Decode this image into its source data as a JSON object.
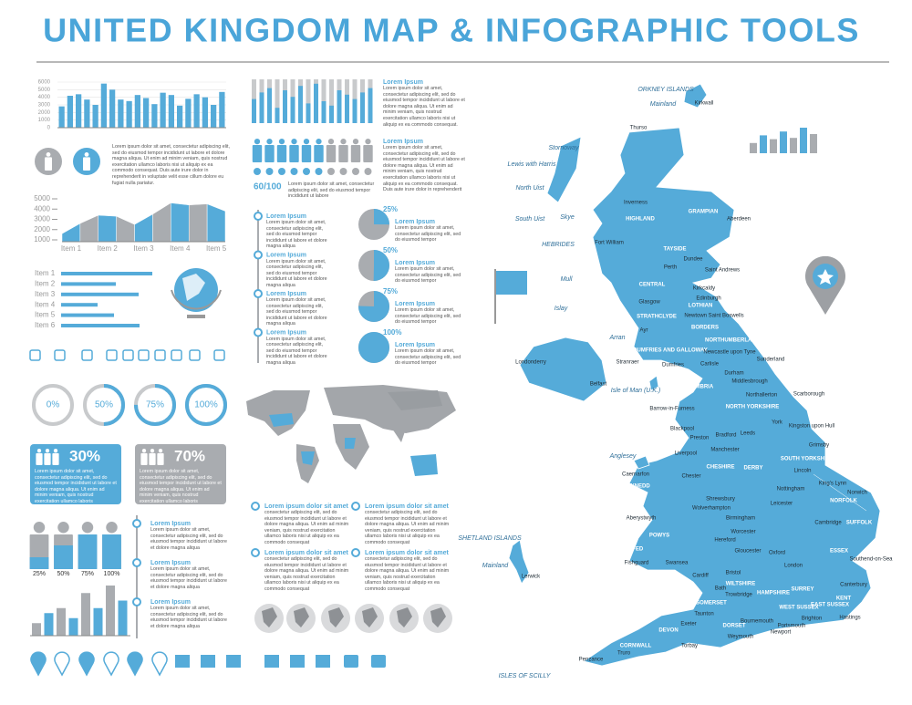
{
  "header": {
    "title": "UNITED KINGDOM MAP & INFOGRAPHIC TOOLS"
  },
  "column_chart": {
    "ylim": [
      0,
      6000
    ],
    "yticks": [
      0,
      1000,
      2000,
      3000,
      4000,
      5000,
      6000
    ],
    "values": [
      2800,
      4200,
      4400,
      3700,
      3000,
      5800,
      5000,
      3700,
      3500,
      4300,
      3900,
      3100,
      4600,
      4300,
      2900,
      3800,
      4400,
      4000,
      3000,
      4700
    ]
  },
  "people_note": {
    "text": "Lorem ipsum dolor sit amet, consectetur adipiscing elit, sed do eiusmod tempor incididunt ut labore et dolore magna aliqua. Ut enim ad minim veniam, quis nostrud exercitation ullamco laboris nisi ut aliquip ex ea commodo consequat. Duis aute irure dolor in reprehenderit in voluptate velit esse cillum dolore eu fugiat nulla pariatur."
  },
  "area_chart": {
    "ylim": [
      1000,
      5000
    ],
    "yticks": [
      1000,
      2000,
      3000,
      4000,
      5000
    ],
    "categories": [
      "Item 1",
      "Item 2",
      "Item 3",
      "Item 4",
      "Item 5"
    ],
    "values": [
      1600,
      2600,
      3400,
      3300,
      2500,
      3500,
      4600,
      4400,
      4500,
      3800
    ]
  },
  "item_bars": {
    "categories": [
      "Item 1",
      "Item 2",
      "Item 3",
      "Item 4",
      "Item 5",
      "Item 6"
    ],
    "values": [
      100,
      60,
      85,
      40,
      58,
      86
    ]
  },
  "gauges": {
    "values": [
      0,
      50,
      75,
      100
    ],
    "value_labels": [
      "0%",
      "50%",
      "75%",
      "100%"
    ]
  },
  "share_panels": [
    {
      "label": "30%",
      "text": "Lorem ipsum dolor sit amet, consectetur adipiscing elit, sed do eiusmod tempor incididunt ut labore et dolore magna aliqua. Ut enim ad minim veniam, quis nostrud exercitation ullamco laboris"
    },
    {
      "label": "70%",
      "text": "Lorem ipsum dolor sit amet, consectetur adipiscing elit, sed do eiusmod tempor incididunt ut labore et dolore magna aliqua. Ut enim ad minim veniam, quis nostrud exercitation ullamco laboris"
    }
  ],
  "person_levels": {
    "values": [
      25,
      50,
      75,
      100
    ],
    "value_labels": [
      "25%",
      "50%",
      "75%",
      "100%"
    ]
  },
  "small_bars": {
    "values": [
      25,
      45,
      55,
      35,
      85,
      55,
      100,
      70
    ]
  },
  "left_timeline": [
    {
      "title": "Lorem Ipsum",
      "text": "Lorem ipsum dolor sit amet, consectetur adipiscing elit, sed do eiusmod tempor incididunt ut labore et dolore magna aliqua"
    },
    {
      "title": "Lorem Ipsum",
      "text": "Lorem ipsum dolor sit amet, consectetur adipiscing elit, sed do eiusmod tempor incididunt ut labore et dolore magna aliqua"
    },
    {
      "title": "Lorem Ipsum",
      "text": "Lorem ipsum dolor sit amet, consectetur adipiscing elit, sed do eiusmod tempor incididunt ut labore et dolore magna aliqua"
    }
  ],
  "thin_bars": {
    "values": [
      55,
      70,
      80,
      35,
      75,
      60,
      85,
      45,
      90,
      50,
      40,
      75,
      65,
      55,
      70,
      80
    ]
  },
  "top_note": {
    "title": "Lorem Ipsum",
    "text": "Lorem ipsum dolor sit amet, consectetur adipiscing elit, sed do eiusmod tempor incididunt ut labore et dolore magna aliqua. Ut enim ad minim veniam, quis nostrud exercitation ullamco laboris nisi ut aliquip ex ea commodo consequat."
  },
  "people_row": {
    "score": 60,
    "score_label": "60/100",
    "score_text": "Lorem ipsum dolor sit amet, consectetur adipiscing elit, sed do eiusmod tempor incididunt ut labore",
    "title": "Lorem Ipsum",
    "text": "Lorem ipsum dolor sit amet, consectetur adipiscing elit, sed do eiusmod tempor incididunt ut labore et dolore magna aliqua. Ut enim ad minim veniam, quis nostrud exercitation ullamco laboris nisi ut aliquip ex ea commodo consequat. Duis aute irure dolor in reprehenderit"
  },
  "mid_timeline": [
    {
      "title": "Lorem Ipsum",
      "text": "Lorem ipsum dolor sit amet, consectetur adipiscing elit, sed do eiusmod tempor incididunt ut labore et dolore magna aliqua"
    },
    {
      "title": "Lorem Ipsum",
      "text": "Lorem ipsum dolor sit amet, consectetur adipiscing elit, sed do eiusmod tempor incididunt ut labore et dolore magna aliqua"
    },
    {
      "title": "Lorem Ipsum",
      "text": "Lorem ipsum dolor sit amet, consectetur adipiscing elit, sed do eiusmod tempor incididunt ut labore et dolore magna aliqua"
    },
    {
      "title": "Lorem Ipsum",
      "text": "Lorem ipsum dolor sit amet, consectetur adipiscing elit, sed do eiusmod tempor incididunt ut labore et dolore magna aliqua"
    }
  ],
  "pies": {
    "values": [
      25,
      50,
      75,
      100
    ],
    "value_labels": [
      "25%",
      "50%",
      "75%",
      "100%"
    ],
    "items": [
      {
        "title": "Lorem Ipsum",
        "text": "Lorem ipsum dolor sit amet, consectetur adipiscing elit, sed do eiusmod tempor"
      },
      {
        "title": "Lorem Ipsum",
        "text": "Lorem ipsum dolor sit amet, consectetur adipiscing elit, sed do eiusmod tempor"
      },
      {
        "title": "Lorem Ipsum",
        "text": "Lorem ipsum dolor sit amet, consectetur adipiscing elit, sed do eiusmod tempor"
      },
      {
        "title": "Lorem Ipsum",
        "text": "Lorem ipsum dolor sit amet, consectetur adipiscing elit, sed do eiusmod tempor"
      }
    ]
  },
  "world_notes": [
    {
      "title": "Lorem ipsum dolor sit amet",
      "text": "consectetur adipiscing elit, sed do eiusmod tempor incididunt ut labore et dolore magna aliqua. Ut enim ad minim veniam, quis nostrud exercitation ullamco laboris nisi ut aliquip ex ea commodo consequat"
    },
    {
      "title": "Lorem ipsum dolor sit amet",
      "text": "consectetur adipiscing elit, sed do eiusmod tempor incididunt ut labore et dolore magna aliqua. Ut enim ad minim veniam, quis nostrud exercitation ullamco laboris nisi ut aliquip ex ea commodo consequat"
    },
    {
      "title": "Lorem ipsum dolor sit amet",
      "text": "consectetur adipiscing elit, sed do eiusmod tempor incididunt ut labore et dolore magna aliqua. Ut enim ad minim veniam, quis nostrud exercitation ullamco laboris nisi ut aliquip ex ea commodo consequat"
    },
    {
      "title": "Lorem ipsum dolor sit amet",
      "text": "consectetur adipiscing elit, sed do eiusmod tempor incididunt ut labore et dolore magna aliqua. Ut enim ad minim veniam, quis nostrud exercitation ullamco laboris nisi ut aliquip ex ea commodo consequat"
    }
  ],
  "mini_chart": {
    "values": [
      40,
      70,
      55,
      85,
      60,
      100,
      75
    ]
  },
  "map": {
    "labels": [
      "ORKNEY ISLANDS",
      "Mainland",
      "Kirkwall",
      "Thurso",
      "Stornoway",
      "Lewis with Harris",
      "North Uist",
      "South Uist",
      "Skye",
      "HEBRIDES",
      "Inverness",
      "HIGHLAND",
      "GRAMPIAN",
      "Aberdeen",
      "Fort William",
      "TAYSIDE",
      "Perth",
      "Dundee",
      "Saint Andrews",
      "Mull",
      "CENTRAL",
      "Kirkcaldy",
      "Edinburgh",
      "Islay",
      "LOTHIAN",
      "Glasgow",
      "Newtown Saint Boswells",
      "STRATHCLYDE",
      "BORDERS",
      "Ayr",
      "Arran",
      "NORTHUMBERLAND",
      "DUMFRIES AND GALLOWAY",
      "Newcastle upon Tyne",
      "Sunderland",
      "Londonderry",
      "Stranraer",
      "Dumfries",
      "Carlisle",
      "Durham",
      "Belfast",
      "Middlesbrough",
      "Isle of Man (U.K.)",
      "CUMBRIA",
      "Northallerton",
      "Scarborough",
      "NORTH YORKSHIRE",
      "Barrow-in-Furness",
      "York",
      "Kingston upon Hull",
      "Blackpool",
      "Preston",
      "Bradford",
      "Leeds",
      "Grimsby",
      "Anglesey",
      "Liverpool",
      "Manchester",
      "SOUTH YORKSHIRE",
      "Caernarfon",
      "Chester",
      "CHESHIRE",
      "DERBY",
      "Lincoln",
      "GWYNEDD",
      "King's Lynn",
      "Nottingham",
      "Norwich",
      "NORFOLK",
      "Shrewsbury",
      "Leicester",
      "Wolverhampton",
      "Aberystwyth",
      "Birmingham",
      "Cambridge",
      "SUFFOLK",
      "POWYS",
      "Worcester",
      "Hereford",
      "DYFED",
      "ESSEX",
      "Gloucester",
      "Oxford",
      "Fishguard",
      "Southend-on-Sea",
      "Swansea",
      "London",
      "Bristol",
      "Cardiff",
      "Canterbury",
      "WILTSHIRE",
      "Bath",
      "SURREY",
      "HAMPSHIRE",
      "Trowbridge",
      "KENT",
      "SOMERSET",
      "EAST SUSSEX",
      "WEST SUSSEX",
      "Taunton",
      "Hastings",
      "Brighton",
      "Bournemouth",
      "Exeter",
      "DORSET",
      "Portsmouth",
      "DEVON",
      "Newport",
      "Weymouth",
      "Torbay",
      "CORNWALL",
      "Truro",
      "Penzance",
      "ISLES OF SCILLY",
      "SHETLAND ISLANDS",
      "Mainland",
      "Lerwick"
    ]
  }
}
